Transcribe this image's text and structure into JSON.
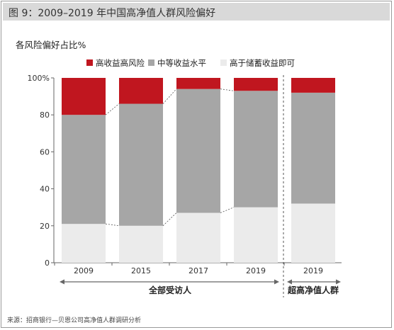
{
  "header": {
    "title": "图 9：2009–2019 年中国高净值人群风险偏好"
  },
  "footer": {
    "source": "来源：招商银行—贝恩公司高净值人群调研分析"
  },
  "colors": {
    "high": "#c0161f",
    "medium": "#a6a6a6",
    "low": "#ebebeb",
    "title_bg": "#d9d9d9"
  },
  "chart_data": {
    "type": "bar",
    "stacked": true,
    "title": "",
    "ylabel": "各风险偏好占比%",
    "ylim": [
      0,
      100
    ],
    "yticks": [
      "0",
      "20",
      "40",
      "60",
      "80",
      "100%"
    ],
    "ytick_values": [
      0,
      20,
      40,
      60,
      80,
      100
    ],
    "categories": [
      "2009",
      "2015",
      "2017",
      "2019",
      "2019"
    ],
    "series": [
      {
        "name": "高于储蓄收益即可",
        "key": "low",
        "values": [
          21,
          20,
          27,
          30,
          32
        ]
      },
      {
        "name": "中等收益水平",
        "key": "medium",
        "values": [
          59,
          66,
          67,
          63,
          60
        ]
      },
      {
        "name": "高收益高风险",
        "key": "high",
        "values": [
          20,
          14,
          6,
          7,
          8
        ]
      }
    ],
    "legend": {
      "placement": "top",
      "order": [
        "高收益高风险",
        "中等收益水平",
        "高于储蓄收益即可"
      ]
    },
    "groups": [
      {
        "label": "全部受访人",
        "categories": [
          0,
          1,
          2,
          3
        ]
      },
      {
        "label": "超高净值人群",
        "categories": [
          4
        ]
      }
    ]
  }
}
